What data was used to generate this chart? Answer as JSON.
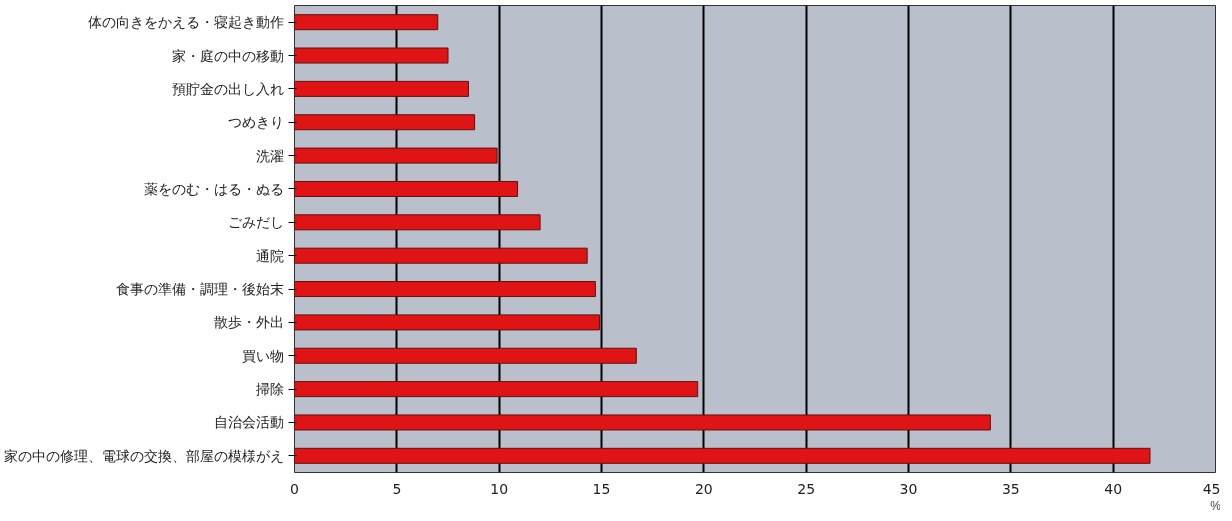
{
  "chart_data": {
    "type": "bar",
    "orientation": "horizontal",
    "xlabel": "%",
    "categories": [
      "体の向きをかえる・寝起き動作",
      "家・庭の中の移動",
      "預貯金の出し入れ",
      "つめきり",
      "洗濯",
      "薬をのむ・はる・ぬる",
      "ごみだし",
      "通院",
      "食事の準備・調理・後始末",
      "散歩・外出",
      "買い物",
      "掃除",
      "自治会活動",
      "家の中の修理、電球の交換、部屋の模様がえ"
    ],
    "series": [
      {
        "color": "#e01414",
        "values": [
          7.0,
          7.5,
          8.5,
          8.8,
          9.9,
          10.9,
          12.0,
          14.3,
          14.7,
          14.9,
          16.7,
          19.7,
          34.0,
          41.8
        ]
      }
    ],
    "xlim": [
      0,
      45
    ],
    "xticks": [
      0,
      5,
      10,
      15,
      20,
      25,
      30,
      35,
      40,
      45
    ],
    "grid": "x"
  }
}
